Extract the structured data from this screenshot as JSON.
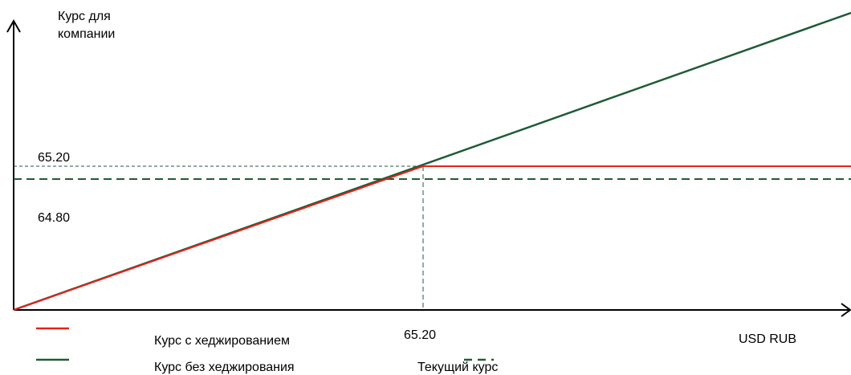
{
  "chart_data": {
    "type": "line",
    "ylabel": "Курс для компании",
    "xlabel": "USD RUB",
    "annotations": {
      "y_strike_label": "65.20",
      "y_current_label": "64.80",
      "x_strike_label": "65.20"
    },
    "strike": 65.2,
    "current_rate": 64.8,
    "series": [
      {
        "name": "Курс с хеджированием",
        "color": "#e8221b",
        "style": "solid",
        "points": [
          [
            0,
            0
          ],
          [
            65.2,
            65.2
          ],
          [
            140,
            65.2
          ]
        ]
      },
      {
        "name": "Курс без хеджирования",
        "color": "#1f5b36",
        "style": "solid",
        "points": [
          [
            0,
            0
          ],
          [
            140,
            140
          ]
        ]
      }
    ],
    "legend": {
      "placement": "bottom",
      "entries": [
        {
          "label": "Курс с хеджированием",
          "color": "#e8221b",
          "style": "solid"
        },
        {
          "label": "Курс без хеджирования",
          "color": "#1f5b36",
          "style": "solid"
        },
        {
          "label": "Текущий курс",
          "color": "#1f5b36",
          "style": "dashed"
        }
      ]
    },
    "grid": false
  }
}
